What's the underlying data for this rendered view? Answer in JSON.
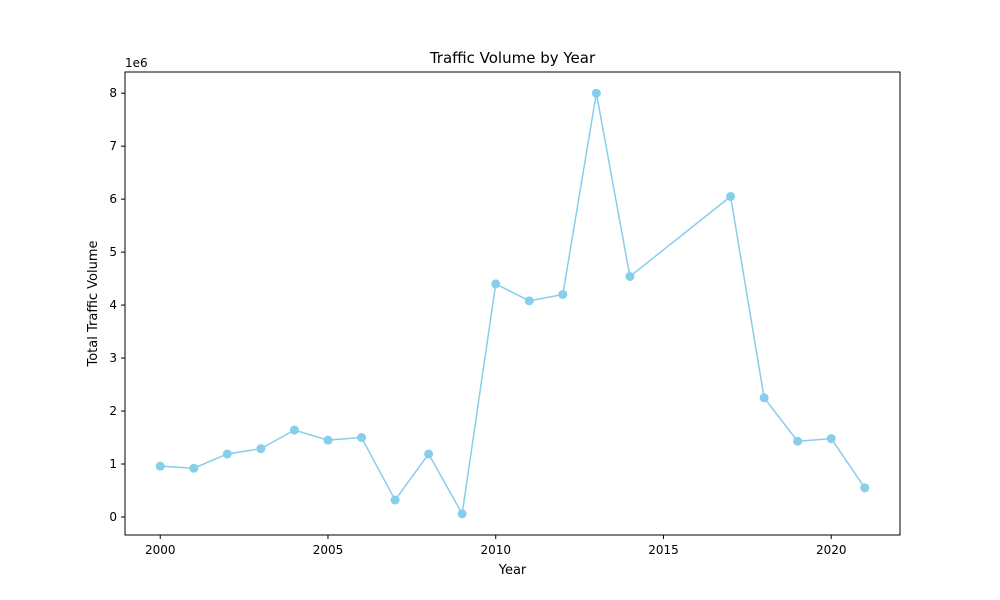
{
  "chart_data": {
    "type": "line",
    "title": "Traffic Volume by Year",
    "xlabel": "Year",
    "ylabel": "Total Traffic Volume",
    "y_multiplier_label": "1e6",
    "xlim": [
      1998.95,
      2022.05
    ],
    "ylim": [
      -340000,
      8400000
    ],
    "x_ticks": [
      2000,
      2005,
      2010,
      2015,
      2020
    ],
    "y_ticks": [
      0,
      1000000,
      2000000,
      3000000,
      4000000,
      5000000,
      6000000,
      7000000,
      8000000
    ],
    "y_tick_labels": [
      "0",
      "1",
      "2",
      "3",
      "4",
      "5",
      "6",
      "7",
      "8"
    ],
    "grid": false,
    "series": [
      {
        "color": "#87CEEB",
        "marker": "circle",
        "x": [
          2000,
          2001,
          2002,
          2003,
          2004,
          2005,
          2006,
          2007,
          2008,
          2009,
          2010,
          2011,
          2012,
          2013,
          2014,
          2017,
          2018,
          2019,
          2020,
          2021
        ],
        "y": [
          960000,
          920000,
          1190000,
          1290000,
          1640000,
          1450000,
          1500000,
          320000,
          1190000,
          60000,
          4400000,
          4080000,
          4200000,
          8000000,
          4540000,
          6050000,
          2250000,
          1430000,
          1480000,
          550000
        ]
      }
    ]
  }
}
